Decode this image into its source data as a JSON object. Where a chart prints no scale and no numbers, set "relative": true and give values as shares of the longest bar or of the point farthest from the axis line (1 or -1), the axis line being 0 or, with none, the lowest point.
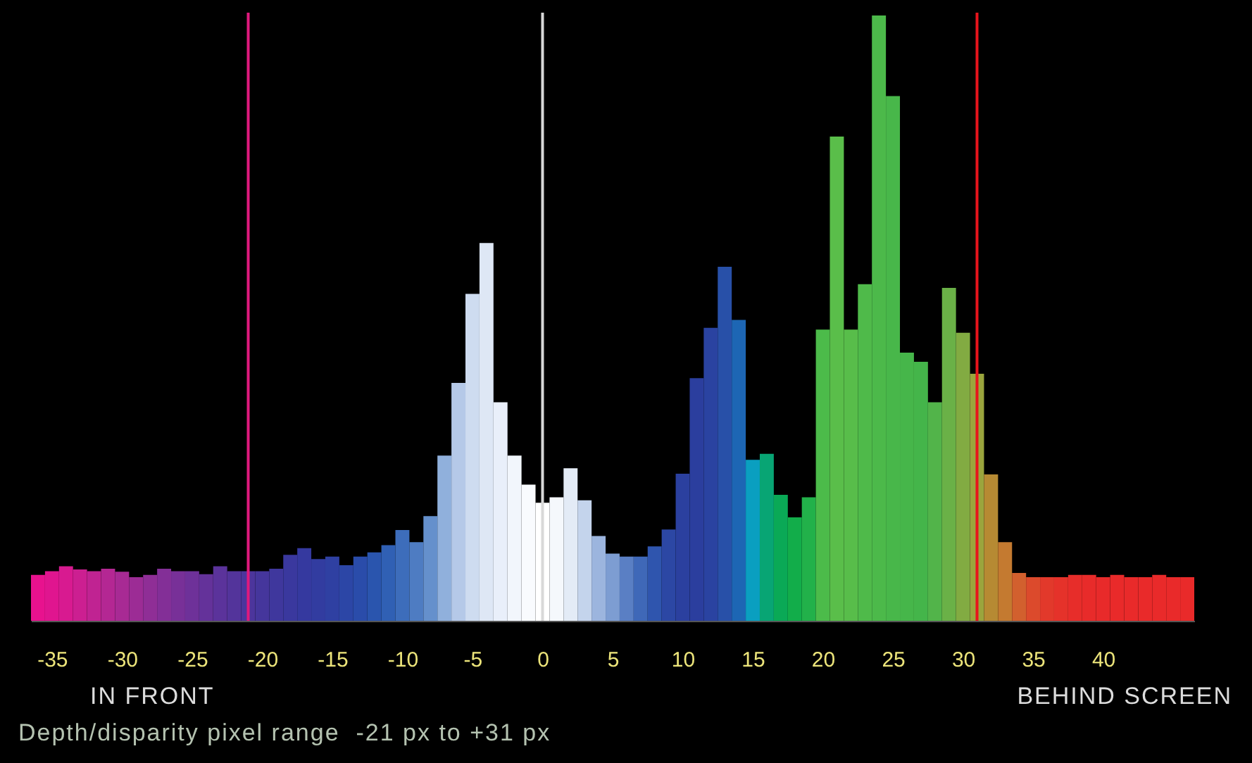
{
  "chart_data": {
    "type": "bar",
    "relative": true,
    "x": [
      -36,
      -35,
      -34,
      -33,
      -32,
      -31,
      -30,
      -29,
      -28,
      -27,
      -26,
      -25,
      -24,
      -23,
      -22,
      -21,
      -20,
      -19,
      -18,
      -17,
      -16,
      -15,
      -14,
      -13,
      -12,
      -11,
      -10,
      -9,
      -8,
      -7,
      -6,
      -5,
      -4,
      -3,
      -2,
      -1,
      0,
      1,
      2,
      3,
      4,
      5,
      6,
      7,
      8,
      9,
      10,
      11,
      12,
      13,
      14,
      15,
      16,
      17,
      18,
      19,
      20,
      21,
      22,
      23,
      24,
      25,
      26,
      27,
      28,
      29,
      30,
      31,
      32,
      33,
      34,
      35,
      36,
      37,
      38,
      39,
      40,
      41,
      42,
      43,
      44,
      45,
      46
    ],
    "values": [
      0.076,
      0.082,
      0.09,
      0.085,
      0.082,
      0.086,
      0.081,
      0.072,
      0.076,
      0.086,
      0.082,
      0.082,
      0.077,
      0.09,
      0.082,
      0.082,
      0.082,
      0.086,
      0.109,
      0.12,
      0.102,
      0.106,
      0.092,
      0.106,
      0.113,
      0.125,
      0.15,
      0.13,
      0.173,
      0.273,
      0.393,
      0.54,
      0.624,
      0.361,
      0.273,
      0.225,
      0.195,
      0.204,
      0.252,
      0.199,
      0.14,
      0.111,
      0.106,
      0.106,
      0.123,
      0.151,
      0.243,
      0.401,
      0.484,
      0.585,
      0.497,
      0.266,
      0.276,
      0.208,
      0.171,
      0.204,
      0.481,
      0.8,
      0.481,
      0.556,
      1,
      0.867,
      0.443,
      0.428,
      0.361,
      0.55,
      0.476,
      0.408,
      0.242,
      0.13,
      0.079,
      0.072,
      0.072,
      0.072,
      0.076,
      0.076,
      0.072,
      0.076,
      0.072,
      0.072,
      0.076,
      0.072,
      0.072
    ],
    "colors": [
      "#e8128e",
      "#e0158f",
      "#d81a90",
      "#cc1f91",
      "#c02392",
      "#b42793",
      "#a82a94",
      "#9c2c95",
      "#8f2e96",
      "#832f97",
      "#783098",
      "#6e3199",
      "#64329a",
      "#5b339b",
      "#53349b",
      "#4c359c",
      "#45369c",
      "#3f379d",
      "#3a389e",
      "#35399f",
      "#323ca0",
      "#2f40a2",
      "#2c46a6",
      "#2a4caa",
      "#2a55ae",
      "#3060b4",
      "#3d6dbb",
      "#4e7cc2",
      "#6590cc",
      "#90b0dc",
      "#b5c9e8",
      "#cedcf0",
      "#dee7f5",
      "#e9effa",
      "#f2f6fc",
      "#f9fbfe",
      "#ffffff",
      "#f5f8fc",
      "#e3ebf6",
      "#c4d4ec",
      "#9cb5de",
      "#7d9dd2",
      "#5a7fc4",
      "#3f68b8",
      "#2f55ae",
      "#2c47a4",
      "#2b409f",
      "#2b3e9e",
      "#2a43a1",
      "#2850a8",
      "#1d66b4",
      "#0a9fc0",
      "#08a574",
      "#0aa956",
      "#12ad4a",
      "#22b14a",
      "#4cbb4a",
      "#5abe4a",
      "#58bd4a",
      "#4fba4a",
      "#4cb94a",
      "#48b74a",
      "#46b64a",
      "#44b54a",
      "#52b44a",
      "#6ab147",
      "#82ab42",
      "#9aa53d",
      "#b68a33",
      "#c47a30",
      "#d2602e",
      "#dc4a2c",
      "#e2392b",
      "#e5322a",
      "#e72d2a",
      "#e82b2a",
      "#e82a2a",
      "#e92a2a",
      "#e92a2a",
      "#e92a2a",
      "#e92a2a",
      "#e92a2a",
      "#e92a2a"
    ],
    "xlim": [
      -36.5,
      46.5
    ],
    "xticks": [
      -35,
      -30,
      -25,
      -20,
      -15,
      -10,
      -5,
      0,
      5,
      10,
      15,
      20,
      25,
      30,
      35,
      40
    ],
    "ref_lines": [
      {
        "axis": "x",
        "value": -21,
        "color": "#e0197d"
      },
      {
        "axis": "x",
        "value": 0,
        "color": "#d8d8d8"
      },
      {
        "axis": "x",
        "value": 31,
        "color": "#e8141c"
      }
    ],
    "annotations": [
      "IN FRONT",
      "BEHIND SCREEN",
      "Depth/disparity pixel range  -21 px to +31 px"
    ]
  }
}
